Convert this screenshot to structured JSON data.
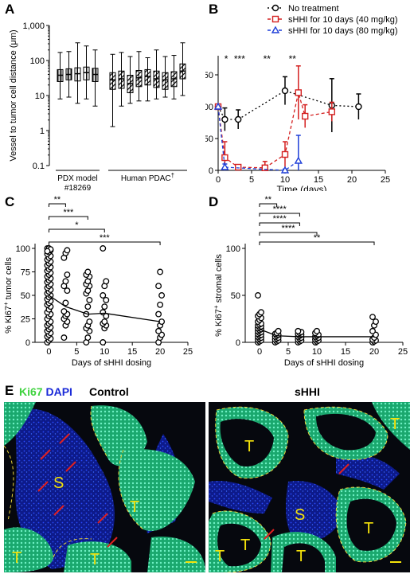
{
  "panel_labels": {
    "A": "A",
    "B": "B",
    "C": "C",
    "D": "D",
    "E": "E"
  },
  "chart_data": [
    {
      "id": "A",
      "type": "box",
      "ylabel": "Vessel to tumor cell distance (μm)",
      "yscale": "log",
      "ylim": [
        0.1,
        1000
      ],
      "yticks": [
        "0.1",
        "1",
        "10",
        "100",
        "1,000"
      ],
      "groups": [
        {
          "label": "PDX model",
          "sublabel": "#18269",
          "pattern": "vertical-stripes",
          "boxes": [
            {
              "min": 8,
              "q1": 25,
              "median": 38,
              "q3": 55,
              "max": 170
            },
            {
              "min": 9,
              "q1": 28,
              "median": 40,
              "q3": 58,
              "max": 180
            },
            {
              "min": 6,
              "q1": 26,
              "median": 42,
              "q3": 62,
              "max": 320
            },
            {
              "min": 8,
              "q1": 28,
              "median": 45,
              "q3": 65,
              "max": 260
            },
            {
              "min": 5,
              "q1": 25,
              "median": 40,
              "q3": 60,
              "max": 200
            }
          ]
        },
        {
          "label": "Human PDAC",
          "superscript": "†",
          "pattern": "diagonal-stripes",
          "boxes": [
            {
              "min": 1.3,
              "q1": 15,
              "median": 28,
              "q3": 45,
              "max": 150
            },
            {
              "min": 5,
              "q1": 16,
              "median": 30,
              "q3": 50,
              "max": 170
            },
            {
              "min": 6,
              "q1": 12,
              "median": 22,
              "q3": 38,
              "max": 130
            },
            {
              "min": 7,
              "q1": 18,
              "median": 32,
              "q3": 52,
              "max": 180
            },
            {
              "min": 7,
              "q1": 20,
              "median": 35,
              "q3": 55,
              "max": 120
            },
            {
              "min": 8,
              "q1": 17,
              "median": 30,
              "q3": 50,
              "max": 200
            },
            {
              "min": 9,
              "q1": 15,
              "median": 28,
              "q3": 45,
              "max": 130
            },
            {
              "min": 8,
              "q1": 18,
              "median": 30,
              "q3": 48,
              "max": 140
            },
            {
              "min": 10,
              "q1": 30,
              "median": 50,
              "q3": 80,
              "max": 320
            }
          ]
        }
      ]
    },
    {
      "id": "B",
      "type": "line",
      "xlabel": "Time (days)",
      "ylabel_prefix": "% ",
      "ylabel_italic": "Gli1",
      "ylabel_suffix": " expression",
      "xlim": [
        0,
        25
      ],
      "ylim": [
        0,
        180
      ],
      "xticks": [
        0,
        5,
        10,
        15,
        20,
        25
      ],
      "yticks": [
        0,
        50,
        100,
        150
      ],
      "significance": [
        {
          "x": 1.2,
          "label": "*"
        },
        {
          "x": 3.2,
          "label": "***"
        },
        {
          "x": 7.3,
          "label": "**"
        },
        {
          "x": 11.1,
          "label": "**"
        }
      ],
      "series": [
        {
          "name": "No treatment",
          "color": "#000000",
          "marker": "circle",
          "dash": "2,3",
          "points": [
            {
              "x": 0,
              "y": 100,
              "e": 0
            },
            {
              "x": 1,
              "y": 80,
              "e": 18
            },
            {
              "x": 3,
              "y": 80,
              "e": 15
            },
            {
              "x": 10,
              "y": 125,
              "e": 22
            },
            {
              "x": 17,
              "y": 102,
              "e": 42
            },
            {
              "x": 21,
              "y": 100,
              "e": 20
            }
          ]
        },
        {
          "name": "sHHI for 10 days  (40 mg/kg)",
          "color": "#d42020",
          "marker": "square",
          "dash": "4,3",
          "points": [
            {
              "x": 0,
              "y": 100,
              "e": 0
            },
            {
              "x": 1,
              "y": 20,
              "e": 25
            },
            {
              "x": 3,
              "y": 5,
              "e": 4
            },
            {
              "x": 7,
              "y": 4,
              "e": 10
            },
            {
              "x": 10,
              "y": 25,
              "e": 20
            },
            {
              "x": 12,
              "y": 122,
              "e": 42
            },
            {
              "x": 13,
              "y": 85,
              "e": 18
            },
            {
              "x": 17,
              "y": 92,
              "e": 15
            }
          ]
        },
        {
          "name": "sHHI for 10 days  (80 mg/kg)",
          "color": "#1f3fd8",
          "marker": "triangle",
          "dash": "4,3",
          "points": [
            {
              "x": 0,
              "y": 100,
              "e": 0
            },
            {
              "x": 1,
              "y": 5,
              "e": 5
            },
            {
              "x": 10,
              "y": 0,
              "e": 2
            },
            {
              "x": 12,
              "y": 15,
              "e": 40
            }
          ]
        }
      ]
    },
    {
      "id": "C",
      "type": "scatter",
      "xlabel": "Days of sHHI dosing",
      "ylabel_prefix": "% Ki67",
      "ylabel_sup": "+",
      "ylabel_suffix": " tumor cells",
      "xlim": [
        -2.5,
        25
      ],
      "ylim": [
        0,
        100
      ],
      "xticks": [
        0,
        5,
        10,
        15,
        20,
        25
      ],
      "yticks": [
        0,
        25,
        50,
        75,
        100
      ],
      "mean_line": [
        {
          "x": 0,
          "y": 50
        },
        {
          "x": 3,
          "y": 38
        },
        {
          "x": 7,
          "y": 30
        },
        {
          "x": 10,
          "y": 31
        },
        {
          "x": 20,
          "y": 22
        }
      ],
      "brackets": [
        {
          "x2": 3,
          "label": "**"
        },
        {
          "x2": 7,
          "label": "***"
        },
        {
          "x2": 10,
          "label": "*"
        },
        {
          "x2": 20,
          "label": "***"
        }
      ],
      "points_by_day": [
        {
          "x": 0,
          "ys": [
            0,
            2,
            4,
            6,
            8,
            10,
            12,
            14,
            16,
            18,
            20,
            22,
            25,
            28,
            30,
            32,
            35,
            38,
            40,
            42,
            44,
            46,
            48,
            50,
            52,
            54,
            56,
            58,
            60,
            62,
            64,
            66,
            68,
            70,
            72,
            74,
            76,
            78,
            80,
            82,
            84,
            86,
            88,
            90,
            92,
            94,
            96,
            98,
            100,
            100,
            99,
            97
          ]
        },
        {
          "x": 3,
          "ys": [
            5,
            18,
            22,
            25,
            28,
            30,
            33,
            42,
            55,
            60,
            65,
            72,
            90,
            95,
            98
          ]
        },
        {
          "x": 7,
          "ys": [
            0,
            5,
            12,
            15,
            18,
            22,
            30,
            38,
            45,
            52,
            55,
            60,
            62,
            65,
            70,
            72,
            75
          ]
        },
        {
          "x": 10,
          "ys": [
            0,
            15,
            18,
            20,
            22,
            28,
            32,
            38,
            45,
            50,
            60,
            65,
            100
          ]
        },
        {
          "x": 20,
          "ys": [
            0,
            5,
            8,
            12,
            18,
            22,
            30,
            40,
            50,
            60,
            75
          ]
        }
      ]
    },
    {
      "id": "D",
      "type": "scatter",
      "xlabel": "Days of sHHI dosing",
      "ylabel_prefix": "% Ki67",
      "ylabel_sup": "+",
      "ylabel_suffix": " stromal cells",
      "xlim": [
        -2.5,
        25
      ],
      "ylim": [
        0,
        100
      ],
      "xticks": [
        0,
        5,
        10,
        15,
        20,
        25
      ],
      "yticks": [
        0,
        50,
        100
      ],
      "mean_line": [
        {
          "x": 0,
          "y": 14
        },
        {
          "x": 3,
          "y": 7
        },
        {
          "x": 7,
          "y": 6
        },
        {
          "x": 10,
          "y": 6
        },
        {
          "x": 20,
          "y": 6
        }
      ],
      "brackets": [
        {
          "x2": 3,
          "label": "**"
        },
        {
          "x2": 7,
          "label": "****"
        },
        {
          "x2": 7,
          "label": "****"
        },
        {
          "x2": 10,
          "label": "****"
        },
        {
          "x2": 20,
          "label": "**"
        }
      ],
      "points_by_day": [
        {
          "x": 0,
          "ys": [
            0,
            1,
            2,
            3,
            4,
            5,
            6,
            7,
            8,
            9,
            10,
            11,
            12,
            13,
            14,
            15,
            16,
            17,
            18,
            19,
            20,
            22,
            24,
            26,
            28,
            30,
            32,
            50
          ]
        },
        {
          "x": 3,
          "ys": [
            0,
            1,
            2,
            3,
            4,
            5,
            6,
            7,
            8,
            9,
            10,
            12
          ]
        },
        {
          "x": 7,
          "ys": [
            0,
            1,
            2,
            3,
            4,
            5,
            6,
            7,
            8,
            9,
            10,
            11,
            12
          ]
        },
        {
          "x": 10,
          "ys": [
            0,
            1,
            2,
            3,
            4,
            5,
            6,
            7,
            8,
            10,
            12
          ]
        },
        {
          "x": 20,
          "ys": [
            0,
            1,
            2,
            3,
            5,
            8,
            12,
            18,
            22,
            27
          ]
        }
      ]
    }
  ],
  "panel_e": {
    "stain_ki67": "Ki67",
    "stain_dapi": "DAPI",
    "control_title": "Control",
    "shhi_title": "sHHI",
    "label_S": "S",
    "label_T": "T",
    "colors": {
      "ki67": "#3fd23f",
      "dapi": "#1a2ad8",
      "label": "#f4e20a",
      "arrow": "#e02020",
      "outline": "#e8d23a"
    }
  }
}
